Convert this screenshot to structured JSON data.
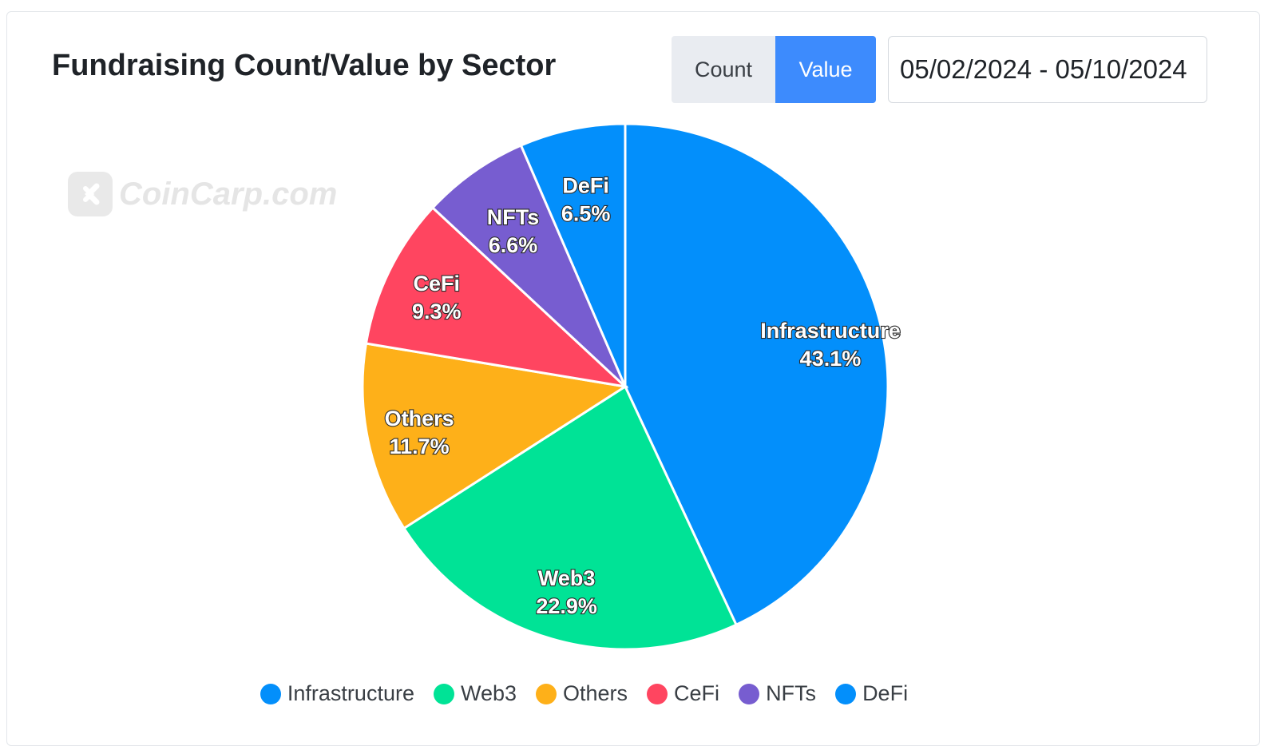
{
  "header": {
    "title": "Fundraising Count/Value by Sector",
    "toggle_count": "Count",
    "toggle_value": "Value",
    "date_range": "05/02/2024 - 05/10/2024"
  },
  "watermark": {
    "text": "CoinCarp.com"
  },
  "colors": {
    "Infrastructure": "#038ffb",
    "Web3": "#00e396",
    "Others": "#feb019",
    "CeFi": "#ff4560",
    "NFTs": "#775dd0",
    "DeFi": "#038ffb"
  },
  "chart_data": {
    "type": "pie",
    "title": "Fundraising Count/Value by Sector",
    "labels": [
      "Infrastructure",
      "Web3",
      "Others",
      "CeFi",
      "NFTs",
      "DeFi"
    ],
    "values": [
      43.1,
      22.9,
      11.7,
      9.3,
      6.6,
      6.5
    ],
    "value_labels": [
      "43.1%",
      "22.9%",
      "11.7%",
      "9.3%",
      "6.6%",
      "6.5%"
    ],
    "legend_position": "bottom"
  }
}
